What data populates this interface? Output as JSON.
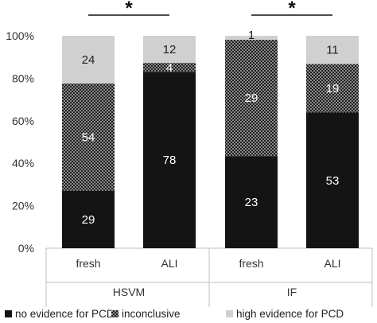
{
  "chart_data": {
    "type": "bar",
    "stacked": true,
    "stack_mode": "percent",
    "categories": [
      "fresh",
      "ALI",
      "fresh",
      "ALI"
    ],
    "groups": [
      {
        "label": "HSVM",
        "categories": [
          "fresh",
          "ALI"
        ]
      },
      {
        "label": "IF",
        "categories": [
          "fresh",
          "ALI"
        ]
      }
    ],
    "series": [
      {
        "name": "no evidence for PCD",
        "color": "#141414",
        "values": [
          29,
          78,
          23,
          53
        ]
      },
      {
        "name": "inconclusive",
        "color": "#5a5a5a",
        "pattern": "checker",
        "values": [
          54,
          4,
          29,
          19
        ]
      },
      {
        "name": "high evidence for PCD",
        "color": "#d0d0d0",
        "values": [
          24,
          12,
          1,
          11
        ]
      }
    ],
    "y_ticks": [
      "0%",
      "20%",
      "40%",
      "60%",
      "80%",
      "100%"
    ],
    "ylim": [
      0,
      100
    ],
    "significance": [
      {
        "label": "*",
        "group": "HSVM"
      },
      {
        "label": "*",
        "group": "IF"
      }
    ],
    "legend_position": "bottom",
    "grid": false
  }
}
